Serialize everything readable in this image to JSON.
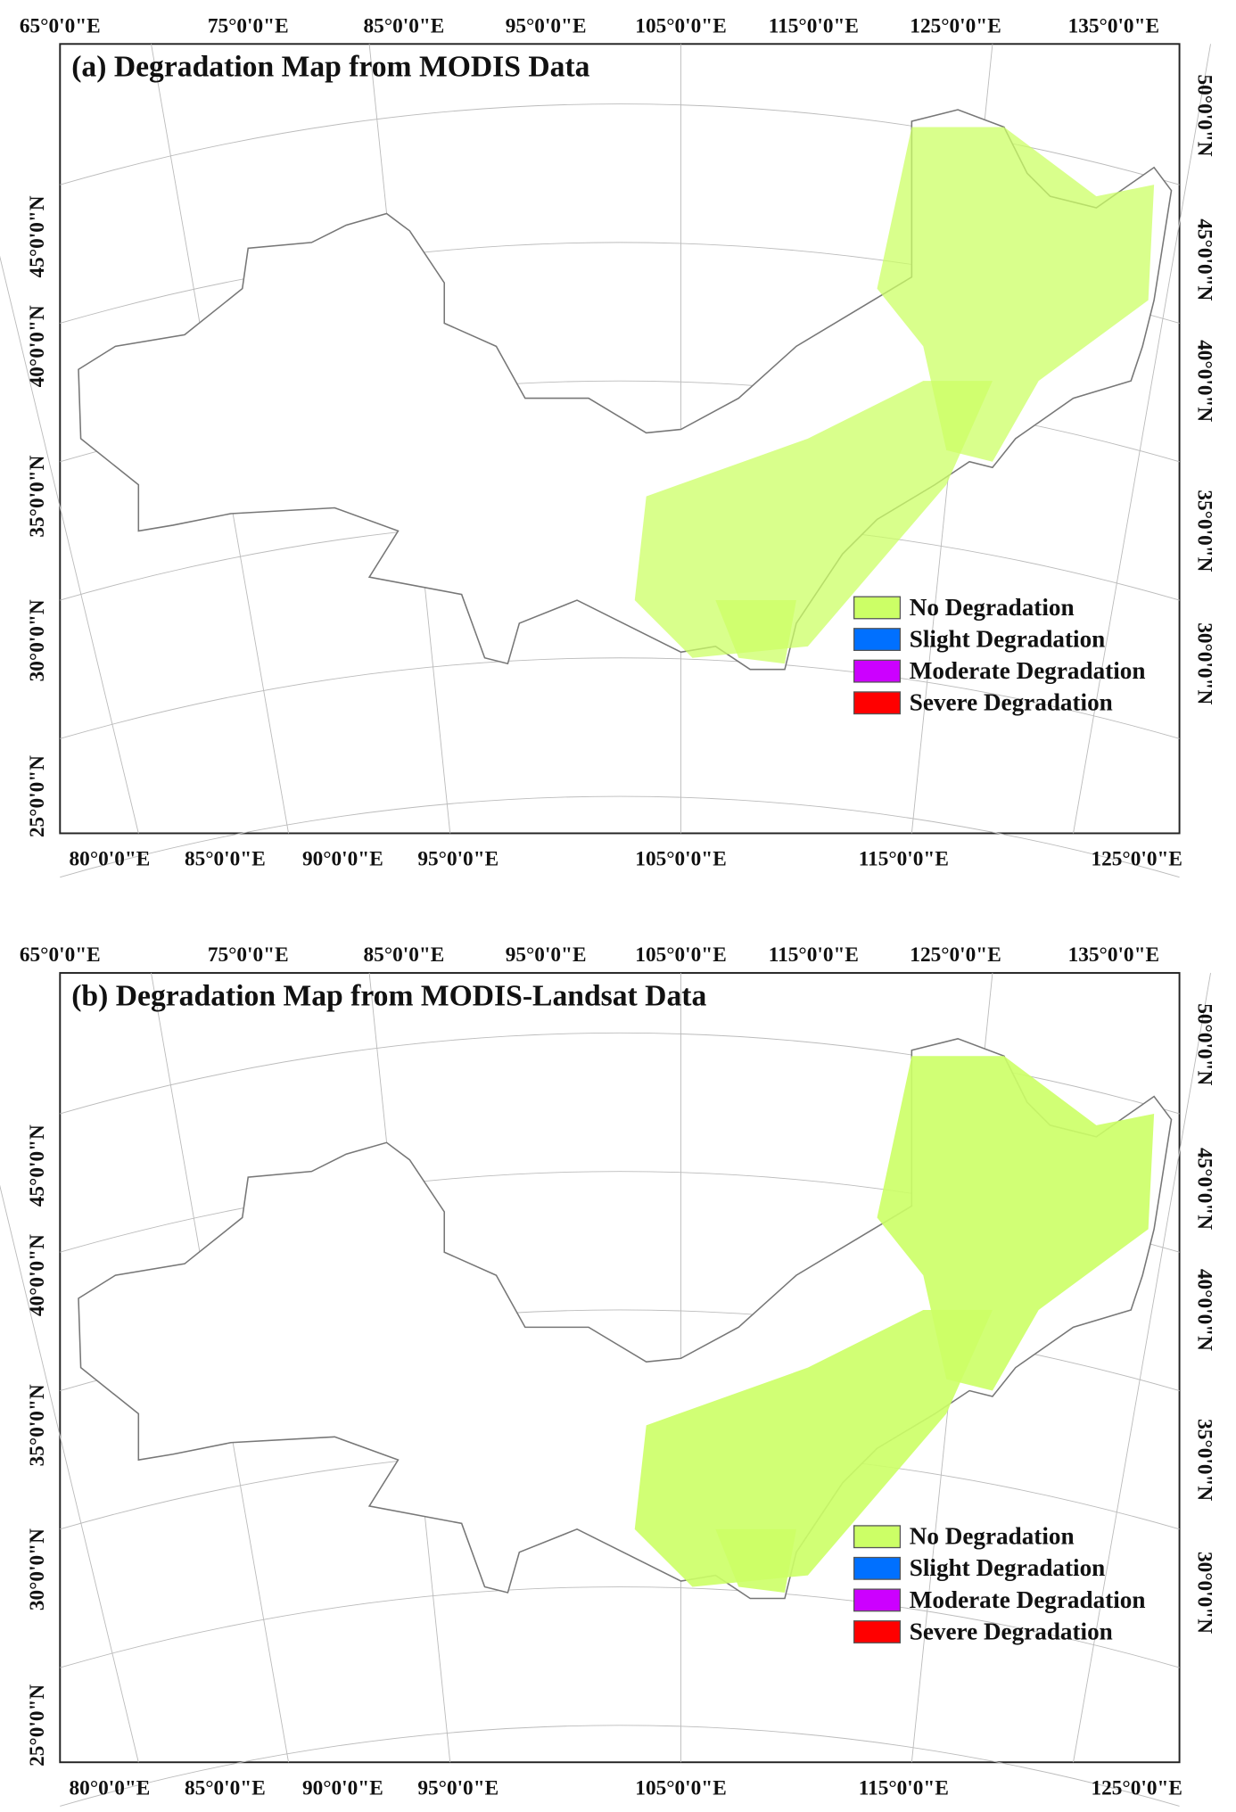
{
  "panels": [
    {
      "title": "(a) Degradation Map from MODIS Data",
      "top_labels": [
        "65°0'0\"E",
        "75°0'0\"E",
        "85°0'0\"E",
        "95°0'0\"E",
        "105°0'0\"E",
        "115°0'0\"E",
        "125°0'0\"E",
        "135°0'0\"E"
      ],
      "bottom_labels": [
        "80°0'0\"E",
        "85°0'0\"E",
        "90°0'0\"E",
        "95°0'0\"E",
        "105°0'0\"E",
        "115°0'0\"E",
        "125°0'0\"E"
      ],
      "left_labels": [
        "45°0'0\"N",
        "40°0'0\"N",
        "35°0'0\"N",
        "30°0'0\"N",
        "25°0'0\"N"
      ],
      "right_labels": [
        "50°0'0\"N",
        "45°0'0\"N",
        "40°0'0\"N",
        "35°0'0\"N",
        "30°0'0\"N"
      ],
      "legend": [
        {
          "label": "No Degradation",
          "color": "#ccff66"
        },
        {
          "label": "Slight Degradation",
          "color": "#0070ff"
        },
        {
          "label": "Moderate Degradation",
          "color": "#cc00ff"
        },
        {
          "label": "Severe Degradation",
          "color": "#ff0000"
        }
      ]
    },
    {
      "title": "(b) Degradation Map from MODIS-Landsat Data",
      "top_labels": [
        "65°0'0\"E",
        "75°0'0\"E",
        "85°0'0\"E",
        "95°0'0\"E",
        "105°0'0\"E",
        "115°0'0\"E",
        "125°0'0\"E",
        "135°0'0\"E"
      ],
      "bottom_labels": [
        "80°0'0\"E",
        "85°0'0\"E",
        "90°0'0\"E",
        "95°0'0\"E",
        "105°0'0\"E",
        "115°0'0\"E",
        "125°0'0\"E"
      ],
      "left_labels": [
        "45°0'0\"N",
        "40°0'0\"N",
        "35°0'0\"N",
        "30°0'0\"N",
        "25°0'0\"N"
      ],
      "right_labels": [
        "50°0'0\"N",
        "45°0'0\"N",
        "40°0'0\"N",
        "35°0'0\"N",
        "30°0'0\"N"
      ],
      "legend": [
        {
          "label": "No Degradation",
          "color": "#ccff66"
        },
        {
          "label": "Slight Degradation",
          "color": "#0070ff"
        },
        {
          "label": "Moderate Degradation",
          "color": "#cc00ff"
        },
        {
          "label": "Severe Degradation",
          "color": "#ff0000"
        }
      ]
    }
  ]
}
